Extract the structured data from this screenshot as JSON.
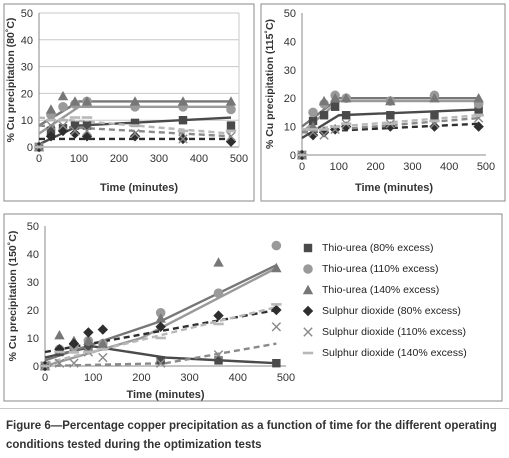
{
  "colors": {
    "frame": "#8a8a8a",
    "grid": "#c8c8c8",
    "thio80": "#4a4a4a",
    "thio110": "#9a9a9a",
    "thio140": "#777777",
    "so2_80": "#2e2e2e",
    "so2_110": "#8a8a8a",
    "so2_140": "#b8b8b8"
  },
  "legend": [
    {
      "key": "thio80",
      "label": "Thio-urea (80% excess)",
      "marker": "square"
    },
    {
      "key": "thio110",
      "label": "Thio-urea (110% excess)",
      "marker": "circle"
    },
    {
      "key": "thio140",
      "label": "Thio-urea (140% excess)",
      "marker": "triangle"
    },
    {
      "key": "so2_80",
      "label": "Sulphur dioxide (80% excess)",
      "marker": "diamond"
    },
    {
      "key": "so2_110",
      "label": "Sulphur dioxide (110% excess)",
      "marker": "cross"
    },
    {
      "key": "so2_140",
      "label": "Sulphur dioxide (140% excess)",
      "marker": "dash"
    }
  ],
  "caption": {
    "line1": "Figure 6—Percentage copper precipitation as a function of time for the different operating",
    "line2": "conditions tested during the optimization tests"
  },
  "chart_data": [
    {
      "type": "scatter",
      "title": "",
      "xlabel": "Time (minutes)",
      "ylabel": "% Cu precipitation (80˚C)",
      "xlim": [
        0,
        500
      ],
      "ylim": [
        0,
        50
      ],
      "xticks": [
        0,
        100,
        200,
        300,
        400,
        500
      ],
      "yticks": [
        0,
        10,
        20,
        30,
        40,
        50
      ],
      "grid": true,
      "series": [
        {
          "key": "thio80",
          "marker": "square",
          "line": "solid",
          "x": [
            0,
            30,
            60,
            90,
            120,
            240,
            360,
            480
          ],
          "y": [
            0,
            6,
            7,
            8,
            8,
            9,
            10,
            8
          ],
          "trend": [
            [
              0,
              1
            ],
            [
              100,
              8
            ],
            [
              480,
              11
            ]
          ]
        },
        {
          "key": "thio110",
          "marker": "circle",
          "line": "solid",
          "x": [
            0,
            30,
            60,
            90,
            120,
            240,
            360,
            480
          ],
          "y": [
            0,
            12,
            15,
            16,
            17,
            15,
            15,
            14
          ],
          "trend": [
            [
              0,
              5
            ],
            [
              100,
              15
            ],
            [
              480,
              15
            ]
          ]
        },
        {
          "key": "thio140",
          "marker": "triangle",
          "line": "solid",
          "x": [
            0,
            30,
            60,
            90,
            120,
            240,
            360,
            480
          ],
          "y": [
            0,
            14,
            19,
            17,
            17,
            17,
            17,
            17
          ],
          "trend": [
            [
              0,
              8
            ],
            [
              100,
              17
            ],
            [
              480,
              17
            ]
          ]
        },
        {
          "key": "so2_80",
          "marker": "diamond",
          "line": "dashed",
          "x": [
            0,
            30,
            60,
            90,
            120,
            240,
            360,
            480
          ],
          "y": [
            0,
            4,
            6,
            5,
            4,
            4,
            3,
            2
          ],
          "trend": [
            [
              0,
              3
            ],
            [
              480,
              3
            ]
          ]
        },
        {
          "key": "so2_110",
          "marker": "cross",
          "line": "dashed",
          "x": [
            0,
            30,
            60,
            90,
            120,
            240,
            360,
            480
          ],
          "y": [
            0,
            8,
            8,
            6,
            6,
            5,
            3,
            4
          ],
          "trend": [
            [
              0,
              8
            ],
            [
              480,
              4
            ]
          ]
        },
        {
          "key": "so2_140",
          "marker": "dash",
          "line": "dashed",
          "x": [
            0,
            30,
            60,
            90,
            120,
            240,
            360,
            480
          ],
          "y": [
            0,
            10,
            10,
            11,
            11,
            8,
            6,
            6
          ],
          "trend": [
            [
              0,
              11
            ],
            [
              480,
              5
            ]
          ]
        }
      ]
    },
    {
      "type": "scatter",
      "title": "",
      "xlabel": "Time (minutes)",
      "ylabel": "% Cu precipitation (115˚C)",
      "xlim": [
        0,
        500
      ],
      "ylim": [
        0,
        50
      ],
      "xticks": [
        0,
        100,
        200,
        300,
        400,
        500
      ],
      "yticks": [
        0,
        10,
        20,
        30,
        40,
        50
      ],
      "grid": false,
      "series": [
        {
          "key": "thio80",
          "marker": "square",
          "line": "solid",
          "x": [
            0,
            30,
            60,
            90,
            120,
            240,
            360,
            480
          ],
          "y": [
            0,
            12,
            14,
            17,
            14,
            14,
            14,
            16
          ],
          "trend": [
            [
              0,
              6
            ],
            [
              100,
              14
            ],
            [
              480,
              16
            ]
          ]
        },
        {
          "key": "thio110",
          "marker": "circle",
          "line": "solid",
          "x": [
            0,
            30,
            60,
            90,
            120,
            240,
            360,
            480
          ],
          "y": [
            0,
            15,
            18,
            21,
            20,
            19,
            21,
            18
          ],
          "trend": [
            [
              0,
              8
            ],
            [
              100,
              19
            ],
            [
              480,
              19
            ]
          ]
        },
        {
          "key": "thio140",
          "marker": "triangle",
          "line": "solid",
          "x": [
            0,
            30,
            60,
            90,
            120,
            240,
            360,
            480
          ],
          "y": [
            0,
            10,
            19,
            20,
            20,
            19,
            20,
            20
          ],
          "trend": [
            [
              0,
              10
            ],
            [
              100,
              20
            ],
            [
              480,
              20
            ]
          ]
        },
        {
          "key": "so2_80",
          "marker": "diamond",
          "line": "dashed",
          "x": [
            0,
            30,
            60,
            90,
            120,
            240,
            360,
            480
          ],
          "y": [
            0,
            7,
            8,
            9,
            10,
            10,
            10,
            10
          ],
          "trend": [
            [
              0,
              8
            ],
            [
              480,
              11
            ]
          ]
        },
        {
          "key": "so2_110",
          "marker": "cross",
          "line": "dashed",
          "x": [
            0,
            30,
            60,
            90,
            120,
            240,
            360,
            480
          ],
          "y": [
            0,
            8,
            7,
            9,
            11,
            11,
            11,
            13
          ],
          "trend": [
            [
              0,
              8
            ],
            [
              480,
              13
            ]
          ]
        },
        {
          "key": "so2_140",
          "marker": "dash",
          "line": "dashed",
          "x": [
            0,
            30,
            60,
            90,
            120,
            240,
            360,
            480
          ],
          "y": [
            0,
            9,
            9,
            10,
            11,
            11,
            12,
            14
          ],
          "trend": [
            [
              0,
              9
            ],
            [
              480,
              14
            ]
          ]
        }
      ]
    },
    {
      "type": "scatter",
      "title": "",
      "xlabel": "Time (minutes)",
      "ylabel": "% Cu precipitation (150˚C)",
      "xlim": [
        0,
        500
      ],
      "ylim": [
        0,
        50
      ],
      "xticks": [
        0,
        100,
        200,
        300,
        400,
        500
      ],
      "yticks": [
        0,
        10,
        20,
        30,
        40,
        50
      ],
      "grid": false,
      "series": [
        {
          "key": "thio80",
          "marker": "square",
          "line": "solid",
          "x": [
            0,
            30,
            60,
            90,
            120,
            240,
            360,
            480
          ],
          "y": [
            0,
            5,
            6,
            7,
            7,
            2,
            2,
            1
          ],
          "trend": [
            [
              0,
              3
            ],
            [
              100,
              7
            ],
            [
              250,
              3
            ],
            [
              480,
              1
            ]
          ]
        },
        {
          "key": "thio110",
          "marker": "circle",
          "line": "solid",
          "x": [
            0,
            30,
            60,
            90,
            120,
            240,
            360,
            480
          ],
          "y": [
            0,
            6,
            7,
            9,
            8,
            19,
            26,
            43
          ],
          "trend": [
            [
              0,
              0
            ],
            [
              200,
              10
            ],
            [
              480,
              35
            ]
          ]
        },
        {
          "key": "thio140",
          "marker": "triangle",
          "line": "solid",
          "x": [
            0,
            30,
            60,
            90,
            120,
            240,
            360,
            480
          ],
          "y": [
            0,
            11,
            9,
            9,
            8,
            17,
            37,
            35
          ],
          "trend": [
            [
              0,
              2
            ],
            [
              240,
              16
            ],
            [
              480,
              36
            ]
          ]
        },
        {
          "key": "so2_80",
          "marker": "diamond",
          "line": "dashed",
          "x": [
            0,
            30,
            60,
            90,
            120,
            240,
            360,
            480
          ],
          "y": [
            0,
            6,
            8,
            12,
            13,
            14,
            18,
            20
          ],
          "trend": [
            [
              0,
              5
            ],
            [
              480,
              20
            ]
          ]
        },
        {
          "key": "so2_110",
          "marker": "cross",
          "line": "dashed",
          "x": [
            0,
            30,
            60,
            90,
            120,
            240,
            360,
            480
          ],
          "y": [
            0,
            1,
            1,
            5,
            3,
            1,
            4,
            14
          ],
          "trend": [
            [
              0,
              0
            ],
            [
              250,
              1
            ],
            [
              480,
              8
            ]
          ]
        },
        {
          "key": "so2_140",
          "marker": "dash",
          "line": "dashed",
          "x": [
            0,
            30,
            60,
            90,
            120,
            240,
            360,
            480
          ],
          "y": [
            0,
            5,
            5,
            5,
            6,
            10,
            15,
            22
          ],
          "trend": [
            [
              0,
              1
            ],
            [
              480,
              21
            ]
          ]
        }
      ]
    }
  ]
}
